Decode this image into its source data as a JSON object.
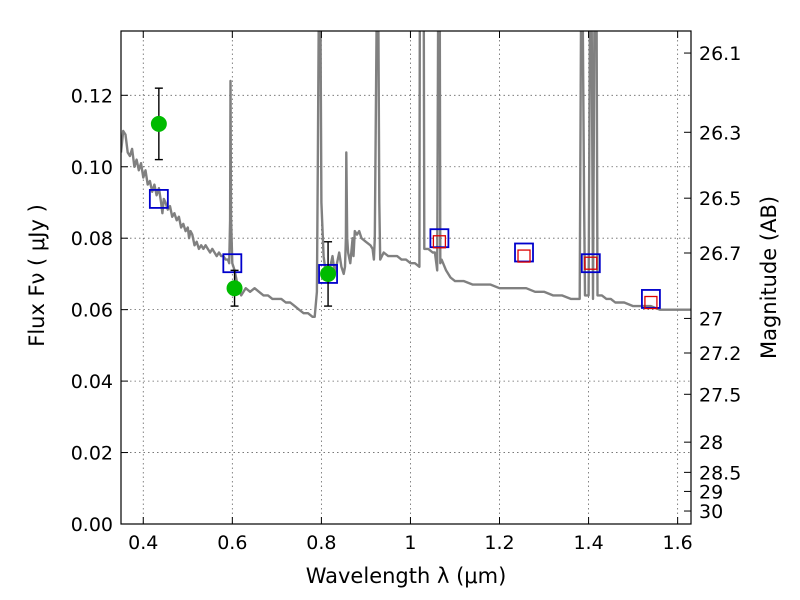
{
  "chart_data": {
    "type": "scatter",
    "xlabel": "Wavelength  λ (μm)",
    "ylabel": "Flux  Fν  ( μJy )",
    "ylabel_right": "Magnitude (AB)",
    "xlim": [
      0.35,
      1.63
    ],
    "ylim": [
      0,
      0.138
    ],
    "grid": true,
    "x_ticks": [
      {
        "value": 0.4,
        "label": "0.4"
      },
      {
        "value": 0.6,
        "label": "0.6"
      },
      {
        "value": 0.8,
        "label": "0.8"
      },
      {
        "value": 1.0,
        "label": "1"
      },
      {
        "value": 1.2,
        "label": "1.2"
      },
      {
        "value": 1.4,
        "label": "1.4"
      },
      {
        "value": 1.6,
        "label": "1.6"
      }
    ],
    "y_ticks": [
      {
        "value": 0.0,
        "label": "0.00"
      },
      {
        "value": 0.02,
        "label": "0.02"
      },
      {
        "value": 0.04,
        "label": "0.04"
      },
      {
        "value": 0.06,
        "label": "0.06"
      },
      {
        "value": 0.08,
        "label": "0.08"
      },
      {
        "value": 0.1,
        "label": "0.10"
      },
      {
        "value": 0.12,
        "label": "0.12"
      }
    ],
    "right_ticks": [
      {
        "value": 26.1,
        "label": "26.1"
      },
      {
        "value": 26.3,
        "label": "26.3"
      },
      {
        "value": 26.5,
        "label": "26.5"
      },
      {
        "value": 26.7,
        "label": "26.7"
      },
      {
        "value": 27.0,
        "label": "27"
      },
      {
        "value": 27.2,
        "label": "27.2"
      },
      {
        "value": 27.5,
        "label": "27.5"
      },
      {
        "value": 28.0,
        "label": "28"
      },
      {
        "value": 28.5,
        "label": "28.5"
      },
      {
        "value": 29.0,
        "label": "29"
      },
      {
        "value": 30.0,
        "label": "30"
      }
    ],
    "series": [
      {
        "kind": "spectrum",
        "color": "#808080",
        "points": [
          [
            0.35,
            0.104
          ],
          [
            0.355,
            0.11
          ],
          [
            0.36,
            0.109
          ],
          [
            0.365,
            0.104
          ],
          [
            0.37,
            0.103
          ],
          [
            0.375,
            0.105
          ],
          [
            0.38,
            0.1
          ],
          [
            0.385,
            0.102
          ],
          [
            0.39,
            0.099
          ],
          [
            0.395,
            0.101
          ],
          [
            0.4,
            0.097
          ],
          [
            0.405,
            0.099
          ],
          [
            0.41,
            0.095
          ],
          [
            0.415,
            0.096
          ],
          [
            0.42,
            0.093
          ],
          [
            0.425,
            0.095
          ],
          [
            0.43,
            0.092
          ],
          [
            0.435,
            0.094
          ],
          [
            0.44,
            0.09
          ],
          [
            0.443,
            0.087
          ],
          [
            0.446,
            0.091
          ],
          [
            0.45,
            0.09
          ],
          [
            0.455,
            0.088
          ],
          [
            0.46,
            0.089
          ],
          [
            0.465,
            0.086
          ],
          [
            0.47,
            0.087
          ],
          [
            0.475,
            0.085
          ],
          [
            0.48,
            0.086
          ],
          [
            0.485,
            0.083
          ],
          [
            0.49,
            0.084
          ],
          [
            0.495,
            0.082
          ],
          [
            0.5,
            0.083
          ],
          [
            0.503,
            0.08
          ],
          [
            0.506,
            0.082
          ],
          [
            0.51,
            0.081
          ],
          [
            0.515,
            0.078
          ],
          [
            0.52,
            0.079
          ],
          [
            0.525,
            0.077
          ],
          [
            0.53,
            0.078
          ],
          [
            0.535,
            0.077
          ],
          [
            0.54,
            0.078
          ],
          [
            0.545,
            0.077
          ],
          [
            0.55,
            0.076
          ],
          [
            0.555,
            0.077
          ],
          [
            0.56,
            0.076
          ],
          [
            0.565,
            0.075
          ],
          [
            0.57,
            0.076
          ],
          [
            0.575,
            0.075
          ],
          [
            0.58,
            0.075
          ],
          [
            0.585,
            0.074
          ],
          [
            0.59,
            0.074
          ],
          [
            0.593,
            0.073
          ],
          [
            0.595,
            0.085
          ],
          [
            0.596,
            0.124
          ],
          [
            0.597,
            0.086
          ],
          [
            0.6,
            0.073
          ],
          [
            0.605,
            0.071
          ],
          [
            0.61,
            0.068
          ],
          [
            0.615,
            0.066
          ],
          [
            0.62,
            0.064
          ],
          [
            0.63,
            0.066
          ],
          [
            0.64,
            0.065
          ],
          [
            0.65,
            0.066
          ],
          [
            0.66,
            0.065
          ],
          [
            0.67,
            0.064
          ],
          [
            0.68,
            0.064
          ],
          [
            0.69,
            0.063
          ],
          [
            0.7,
            0.063
          ],
          [
            0.71,
            0.063
          ],
          [
            0.72,
            0.062
          ],
          [
            0.73,
            0.062
          ],
          [
            0.74,
            0.061
          ],
          [
            0.75,
            0.06
          ],
          [
            0.76,
            0.059
          ],
          [
            0.77,
            0.059
          ],
          [
            0.78,
            0.058
          ],
          [
            0.785,
            0.058
          ],
          [
            0.79,
            0.065
          ],
          [
            0.792,
            0.1
          ],
          [
            0.794,
            0.14
          ],
          [
            0.798,
            0.14
          ],
          [
            0.8,
            0.09
          ],
          [
            0.805,
            0.075
          ],
          [
            0.81,
            0.07
          ],
          [
            0.815,
            0.068
          ],
          [
            0.82,
            0.072
          ],
          [
            0.825,
            0.075
          ],
          [
            0.83,
            0.07
          ],
          [
            0.835,
            0.073
          ],
          [
            0.84,
            0.076
          ],
          [
            0.845,
            0.072
          ],
          [
            0.85,
            0.07
          ],
          [
            0.853,
            0.072
          ],
          [
            0.855,
            0.08
          ],
          [
            0.856,
            0.104
          ],
          [
            0.858,
            0.08
          ],
          [
            0.86,
            0.076
          ],
          [
            0.865,
            0.073
          ],
          [
            0.87,
            0.08
          ],
          [
            0.872,
            0.075
          ],
          [
            0.875,
            0.082
          ],
          [
            0.88,
            0.081
          ],
          [
            0.885,
            0.082
          ],
          [
            0.89,
            0.08
          ],
          [
            0.9,
            0.079
          ],
          [
            0.91,
            0.078
          ],
          [
            0.915,
            0.077
          ],
          [
            0.918,
            0.074
          ],
          [
            0.92,
            0.08
          ],
          [
            0.922,
            0.11
          ],
          [
            0.924,
            0.14
          ],
          [
            0.928,
            0.14
          ],
          [
            0.93,
            0.09
          ],
          [
            0.932,
            0.074
          ],
          [
            0.94,
            0.076
          ],
          [
            0.95,
            0.075
          ],
          [
            0.96,
            0.075
          ],
          [
            0.97,
            0.075
          ],
          [
            0.98,
            0.074
          ],
          [
            0.99,
            0.074
          ],
          [
            1.0,
            0.073
          ],
          [
            1.01,
            0.073
          ],
          [
            1.02,
            0.072
          ],
          [
            1.021,
            0.14
          ],
          [
            1.03,
            0.14
          ],
          [
            1.031,
            0.077
          ],
          [
            1.04,
            0.077
          ],
          [
            1.05,
            0.076
          ],
          [
            1.055,
            0.076
          ],
          [
            1.058,
            0.073
          ],
          [
            1.06,
            0.071
          ],
          [
            1.062,
            0.14
          ],
          [
            1.066,
            0.14
          ],
          [
            1.067,
            0.073
          ],
          [
            1.07,
            0.074
          ],
          [
            1.08,
            0.071
          ],
          [
            1.09,
            0.069
          ],
          [
            1.1,
            0.068
          ],
          [
            1.12,
            0.068
          ],
          [
            1.14,
            0.067
          ],
          [
            1.16,
            0.067
          ],
          [
            1.18,
            0.067
          ],
          [
            1.2,
            0.066
          ],
          [
            1.22,
            0.066
          ],
          [
            1.24,
            0.066
          ],
          [
            1.26,
            0.066
          ],
          [
            1.28,
            0.065
          ],
          [
            1.3,
            0.065
          ],
          [
            1.32,
            0.064
          ],
          [
            1.34,
            0.064
          ],
          [
            1.36,
            0.063
          ],
          [
            1.38,
            0.063
          ],
          [
            1.383,
            0.14
          ],
          [
            1.387,
            0.14
          ],
          [
            1.39,
            0.09
          ],
          [
            1.392,
            0.064
          ],
          [
            1.4,
            0.064
          ],
          [
            1.403,
            0.14
          ],
          [
            1.407,
            0.14
          ],
          [
            1.41,
            0.063
          ],
          [
            1.413,
            0.14
          ],
          [
            1.418,
            0.14
          ],
          [
            1.42,
            0.064
          ],
          [
            1.43,
            0.064
          ],
          [
            1.44,
            0.063
          ],
          [
            1.45,
            0.063
          ],
          [
            1.46,
            0.062
          ],
          [
            1.48,
            0.062
          ],
          [
            1.5,
            0.061
          ],
          [
            1.52,
            0.061
          ],
          [
            1.54,
            0.061
          ],
          [
            1.56,
            0.06
          ],
          [
            1.58,
            0.06
          ],
          [
            1.6,
            0.06
          ],
          [
            1.63,
            0.06
          ]
        ]
      },
      {
        "kind": "observed",
        "color": "#00bb00",
        "points": [
          {
            "x": 0.435,
            "y": 0.112,
            "err": 0.01
          },
          {
            "x": 0.605,
            "y": 0.066,
            "err": 0.005
          },
          {
            "x": 0.815,
            "y": 0.07,
            "err": 0.009
          }
        ]
      },
      {
        "kind": "model-blue-squares",
        "color": "#0000cc",
        "points": [
          {
            "x": 0.435,
            "y": 0.091
          },
          {
            "x": 0.6,
            "y": 0.073
          },
          {
            "x": 0.815,
            "y": 0.07
          },
          {
            "x": 1.065,
            "y": 0.08
          },
          {
            "x": 1.255,
            "y": 0.076
          },
          {
            "x": 1.405,
            "y": 0.073
          },
          {
            "x": 1.54,
            "y": 0.063
          }
        ]
      },
      {
        "kind": "model-red-squares",
        "color": "#dd0000",
        "points": [
          {
            "x": 1.065,
            "y": 0.079
          },
          {
            "x": 1.255,
            "y": 0.075
          },
          {
            "x": 1.405,
            "y": 0.073
          },
          {
            "x": 1.54,
            "y": 0.062
          }
        ]
      }
    ]
  }
}
